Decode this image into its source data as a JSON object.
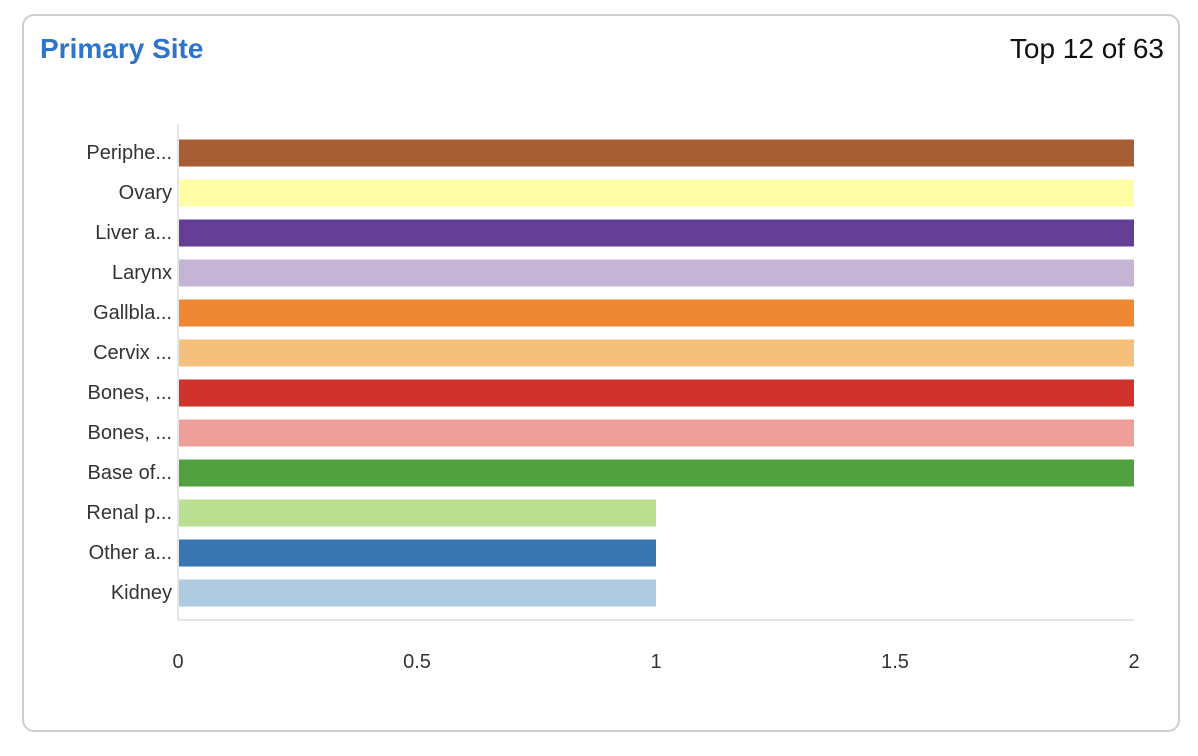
{
  "header": {
    "title": "Primary Site",
    "count_label": "Top 12 of 63"
  },
  "chart_data": {
    "type": "bar",
    "orientation": "horizontal",
    "title": "Primary Site",
    "xlabel": "",
    "ylabel": "",
    "xlim": [
      0,
      2
    ],
    "x_ticks": [
      "0",
      "0.5",
      "1",
      "1.5",
      "2"
    ],
    "x_tick_values": [
      0,
      0.5,
      1,
      1.5,
      2
    ],
    "grid": false,
    "categories": [
      "Periphe...",
      "Ovary",
      "Liver a...",
      "Larynx",
      "Gallbla...",
      "Cervix ...",
      "Bones, ...",
      "Bones, ...",
      "Base of...",
      "Renal p...",
      "Other a...",
      "Kidney"
    ],
    "values": [
      2,
      2,
      2,
      2,
      2,
      2,
      2,
      2,
      2,
      1,
      1,
      1
    ],
    "colors": [
      "#a65f34",
      "#fdfea6",
      "#653f95",
      "#c5b4d5",
      "#ef8834",
      "#f4c17d",
      "#cf332b",
      "#ef9f9a",
      "#52a040",
      "#badf91",
      "#3975ae",
      "#afcbe1"
    ]
  }
}
